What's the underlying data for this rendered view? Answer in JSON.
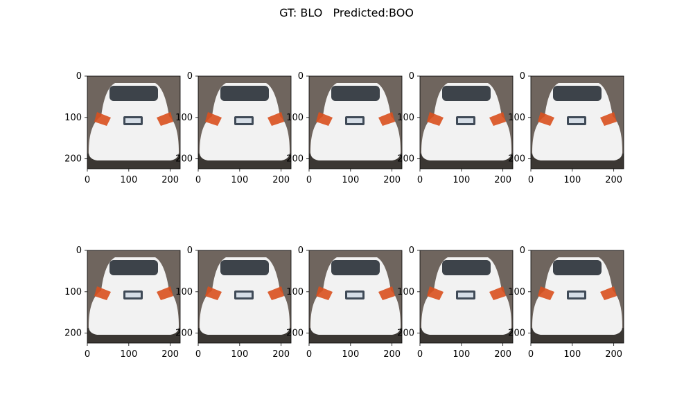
{
  "figure": {
    "title": "GT: BLO   Predicted:BOO",
    "axes": {
      "y_ticks": [
        "0",
        "100",
        "200"
      ],
      "x_ticks": [
        "0",
        "100",
        "200"
      ]
    }
  },
  "panels": [
    {
      "row": 1,
      "col": 1
    },
    {
      "row": 1,
      "col": 2
    },
    {
      "row": 1,
      "col": 3
    },
    {
      "row": 1,
      "col": 4
    },
    {
      "row": 1,
      "col": 5
    },
    {
      "row": 2,
      "col": 1
    },
    {
      "row": 2,
      "col": 2
    },
    {
      "row": 2,
      "col": 3
    },
    {
      "row": 2,
      "col": 4
    },
    {
      "row": 2,
      "col": 5
    }
  ],
  "colors": {
    "car_body": "#f2f2f2",
    "background_asphalt": "#6f655e",
    "shadow": "#2a2826",
    "taillight": "#d9501e",
    "window": "#3d434a"
  }
}
